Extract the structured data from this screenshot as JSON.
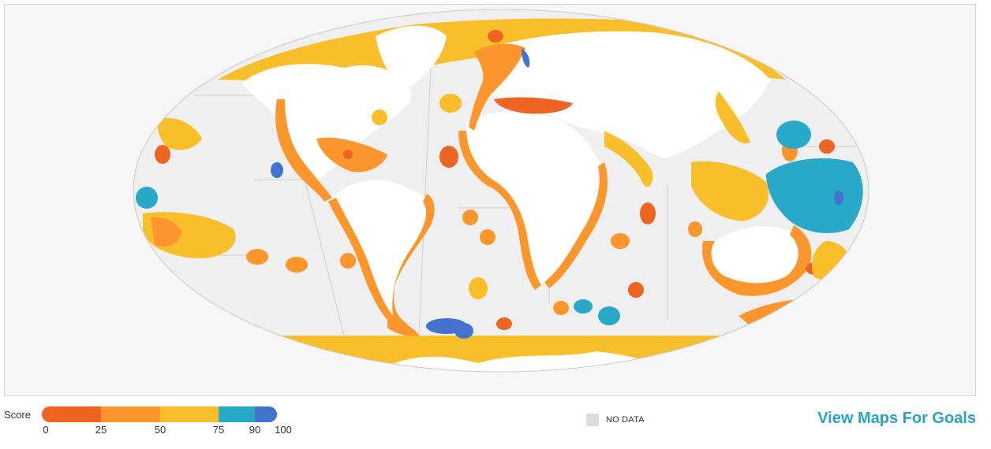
{
  "legend": {
    "score_label": "Score",
    "ticks": [
      "0",
      "25",
      "50",
      "75",
      "90",
      "100"
    ],
    "bands": [
      {
        "from": 0,
        "to": 25,
        "color": "#ee6423"
      },
      {
        "from": 25,
        "to": 50,
        "color": "#fd962c"
      },
      {
        "from": 50,
        "to": 75,
        "color": "#f8bf2b"
      },
      {
        "from": 75,
        "to": 90,
        "color": "#28a9c7"
      },
      {
        "from": 90,
        "to": 100,
        "color": "#4472cf"
      }
    ],
    "no_data_label": "NO DATA",
    "no_data_color": "#dcdcdc"
  },
  "link": {
    "goals_label": "View Maps For Goals",
    "color": "#2aa3c2"
  },
  "map": {
    "projection": "mollweide",
    "land_color": "#ffffff",
    "ocean_color": "#efefef",
    "background_color": "#f6f6f6"
  }
}
